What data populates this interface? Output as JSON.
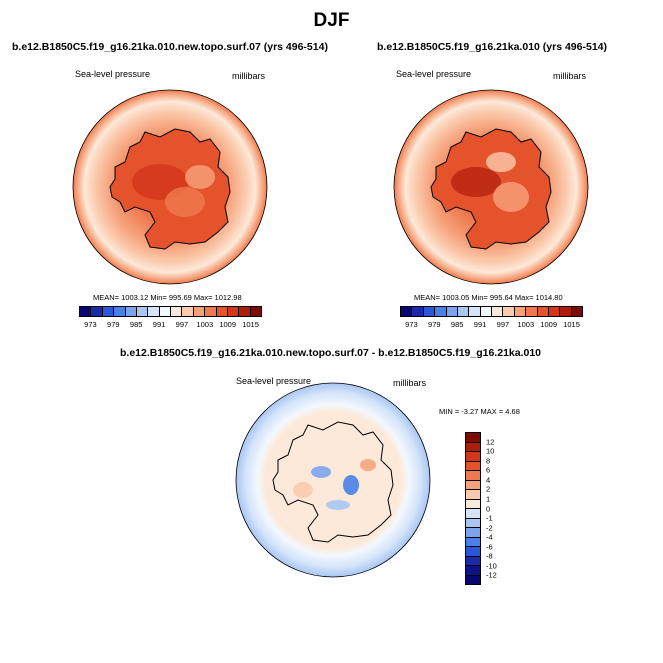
{
  "title": "DJF",
  "panels": [
    {
      "case": "b.e12.B1850C5.f19_g16.21ka.010.new.topo.surf.07 (yrs 496-514)",
      "variable": "Sea-level pressure",
      "units": "millibars",
      "stats": "MEAN= 1003.12  Min= 995.69  Max= 1012.98"
    },
    {
      "case": "b.e12.B1850C5.f19_g16.21ka.010 (yrs 496-514)",
      "variable": "Sea-level pressure",
      "units": "millibars",
      "stats": "MEAN= 1003.05  Min= 995.64  Max= 1014.80"
    }
  ],
  "abs_colorbar": {
    "tick_labels": [
      "973",
      "979",
      "985",
      "991",
      "997",
      "1003",
      "1009",
      "1015"
    ],
    "colors": [
      "#08076b",
      "#1a2aa8",
      "#2b56d8",
      "#4a7fe8",
      "#7aa4ee",
      "#a9c6f4",
      "#d4e4fa",
      "#f3f8fe",
      "#fde9d9",
      "#fbcbae",
      "#f6a37c",
      "#ef7a50",
      "#e5532c",
      "#d3361a",
      "#b01c0b",
      "#7e0c04"
    ]
  },
  "diff_panel": {
    "case": "b.e12.B1850C5.f19_g16.21ka.010.new.topo.surf.07 - b.e12.B1850C5.f19_g16.21ka.010",
    "variable": "Sea-level pressure",
    "units": "millibars",
    "stats": "MIN =  -3.27 MAX =   4.68"
  },
  "diff_colorbar": {
    "tick_labels": [
      "12",
      "10",
      "8",
      "6",
      "4",
      "2",
      "1",
      "0",
      "-1",
      "-2",
      "-4",
      "-6",
      "-8",
      "-10",
      "-12"
    ],
    "colors": [
      "#7e0c04",
      "#b01c0b",
      "#d3361a",
      "#e5532c",
      "#ef7a50",
      "#f6a37c",
      "#fbcbae",
      "#fde9d9",
      "#d4e4fa",
      "#a9c6f4",
      "#7aa4ee",
      "#4a7fe8",
      "#2b56d8",
      "#1a2aa8",
      "#0d1289",
      "#08076b"
    ]
  }
}
